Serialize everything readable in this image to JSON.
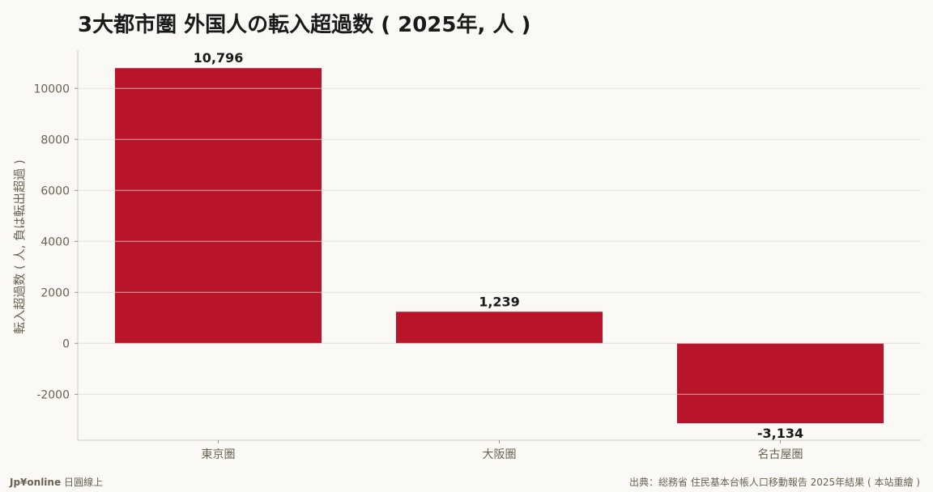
{
  "chart_data": {
    "type": "bar",
    "title": "3大都市圏 外国人の転入超過数 ( 2025年, 人 )",
    "ylabel": "転入超過数 ( 人, 負は転出超過 )",
    "xlabel": "",
    "categories": [
      "東京圏",
      "大阪圏",
      "名古屋圏"
    ],
    "values": [
      10796,
      1239,
      -3134
    ],
    "value_labels": [
      "10,796",
      "1,239",
      "-3,134"
    ],
    "ylim": [
      -3800,
      11500
    ],
    "yticks": [
      -2000,
      0,
      2000,
      4000,
      6000,
      8000,
      10000
    ],
    "ytick_labels": [
      "-2000",
      "0",
      "2000",
      "4000",
      "6000",
      "8000",
      "10000"
    ],
    "grid": true,
    "bar_color": "#b8152b"
  },
  "footer": {
    "brand": "Jp¥online",
    "brand_sub": "日圓線上",
    "source": "出典：総務省 住民基本台帳人口移動報告 2025年結果 ( 本站重繪 )"
  }
}
